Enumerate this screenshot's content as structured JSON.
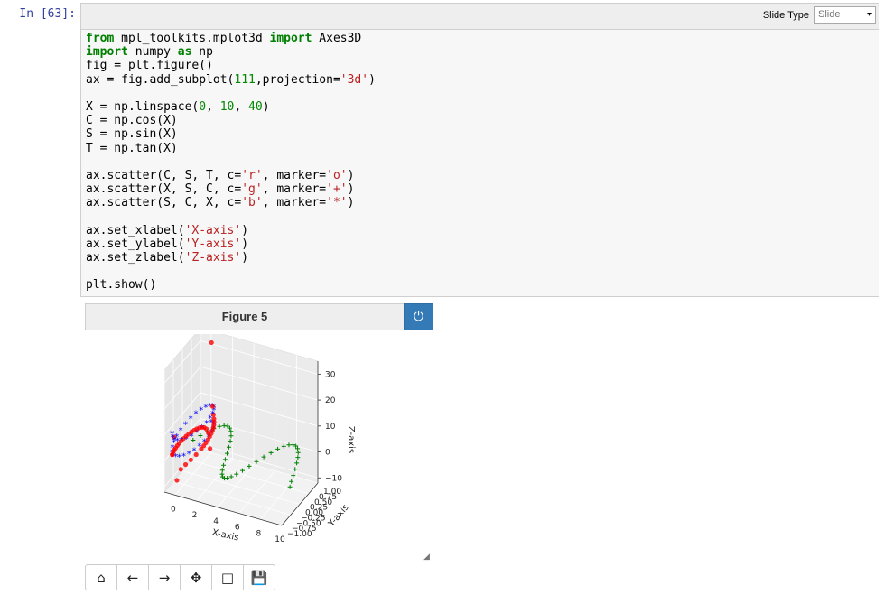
{
  "cell": {
    "prompt": "In [63]:",
    "slide_type_label": "Slide Type",
    "slide_type_value": "Slide",
    "code_lines": [
      [
        {
          "t": "from",
          "c": "k"
        },
        {
          "t": " mpl_toolkits.mplot3d "
        },
        {
          "t": "import",
          "c": "k"
        },
        {
          "t": " Axes3D"
        }
      ],
      [
        {
          "t": "import",
          "c": "k"
        },
        {
          "t": " numpy "
        },
        {
          "t": "as",
          "c": "k"
        },
        {
          "t": " np"
        }
      ],
      [
        {
          "t": "fig = plt.figure()"
        }
      ],
      [
        {
          "t": "ax = fig.add_subplot("
        },
        {
          "t": "111",
          "c": "n"
        },
        {
          "t": ",projection="
        },
        {
          "t": "'3d'",
          "c": "s"
        },
        {
          "t": ")"
        }
      ],
      [
        {
          "t": ""
        }
      ],
      [
        {
          "t": "X = np.linspace("
        },
        {
          "t": "0",
          "c": "n"
        },
        {
          "t": ", "
        },
        {
          "t": "10",
          "c": "n"
        },
        {
          "t": ", "
        },
        {
          "t": "40",
          "c": "n"
        },
        {
          "t": ")"
        }
      ],
      [
        {
          "t": "C = np.cos(X)"
        }
      ],
      [
        {
          "t": "S = np.sin(X)"
        }
      ],
      [
        {
          "t": "T = np.tan(X)"
        }
      ],
      [
        {
          "t": ""
        }
      ],
      [
        {
          "t": "ax.scatter(C, S, T, c="
        },
        {
          "t": "'r'",
          "c": "s"
        },
        {
          "t": ", marker="
        },
        {
          "t": "'o'",
          "c": "s"
        },
        {
          "t": ")"
        }
      ],
      [
        {
          "t": "ax.scatter(X, S, C, c="
        },
        {
          "t": "'g'",
          "c": "s"
        },
        {
          "t": ", marker="
        },
        {
          "t": "'+'",
          "c": "s"
        },
        {
          "t": ")"
        }
      ],
      [
        {
          "t": "ax.scatter(S, C, X, c="
        },
        {
          "t": "'b'",
          "c": "s"
        },
        {
          "t": ", marker="
        },
        {
          "t": "'*'",
          "c": "s"
        },
        {
          "t": ")"
        }
      ],
      [
        {
          "t": ""
        }
      ],
      [
        {
          "t": "ax.set_xlabel("
        },
        {
          "t": "'X-axis'",
          "c": "s"
        },
        {
          "t": ")"
        }
      ],
      [
        {
          "t": "ax.set_ylabel("
        },
        {
          "t": "'Y-axis'",
          "c": "s"
        },
        {
          "t": ")"
        }
      ],
      [
        {
          "t": "ax.set_zlabel("
        },
        {
          "t": "'Z-axis'",
          "c": "s"
        },
        {
          "t": ")"
        }
      ],
      [
        {
          "t": ""
        }
      ],
      [
        {
          "t": "plt.show()"
        }
      ]
    ]
  },
  "figure": {
    "title": "Figure 5",
    "power_icon": "power-icon",
    "toolbar": [
      {
        "name": "home-button",
        "icon": "home-icon",
        "glyph": "⌂"
      },
      {
        "name": "back-button",
        "icon": "arrow-left-icon",
        "glyph": "←"
      },
      {
        "name": "forward-button",
        "icon": "arrow-right-icon",
        "glyph": "→"
      },
      {
        "name": "pan-button",
        "icon": "move-icon",
        "glyph": "✥"
      },
      {
        "name": "zoom-button",
        "icon": "square-icon",
        "glyph": "□"
      },
      {
        "name": "save-button",
        "icon": "floppy-icon",
        "glyph": "💾"
      }
    ]
  },
  "chart_data": {
    "type": "scatter",
    "title": "",
    "xlabel": "X-axis",
    "ylabel": "Y-axis",
    "zlabel": "Z-axis",
    "x_ticks": [
      "0",
      "2",
      "4",
      "6",
      "8",
      "10"
    ],
    "y_ticks": [
      "−1.00",
      "−0.75",
      "−0.50",
      "−0.25",
      "0.00",
      "0.25",
      "0.50",
      "0.75",
      "1.00"
    ],
    "z_ticks": [
      "−10",
      "0",
      "10",
      "20",
      "30"
    ],
    "grid": true,
    "x": [
      0,
      0.256,
      0.513,
      0.769,
      1.026,
      1.282,
      1.538,
      1.795,
      2.051,
      2.308,
      2.564,
      2.821,
      3.077,
      3.333,
      3.59,
      3.846,
      4.103,
      4.359,
      4.615,
      4.872,
      5.128,
      5.385,
      5.641,
      5.897,
      6.154,
      6.41,
      6.667,
      6.923,
      7.179,
      7.436,
      7.692,
      7.949,
      8.205,
      8.462,
      8.718,
      8.974,
      9.231,
      9.487,
      9.744,
      10
    ],
    "series": [
      {
        "marker": "o",
        "color": "#ff0000"
      },
      {
        "marker": "+",
        "color": "#008000"
      },
      {
        "marker": "*",
        "color": "#0000ff"
      }
    ]
  }
}
